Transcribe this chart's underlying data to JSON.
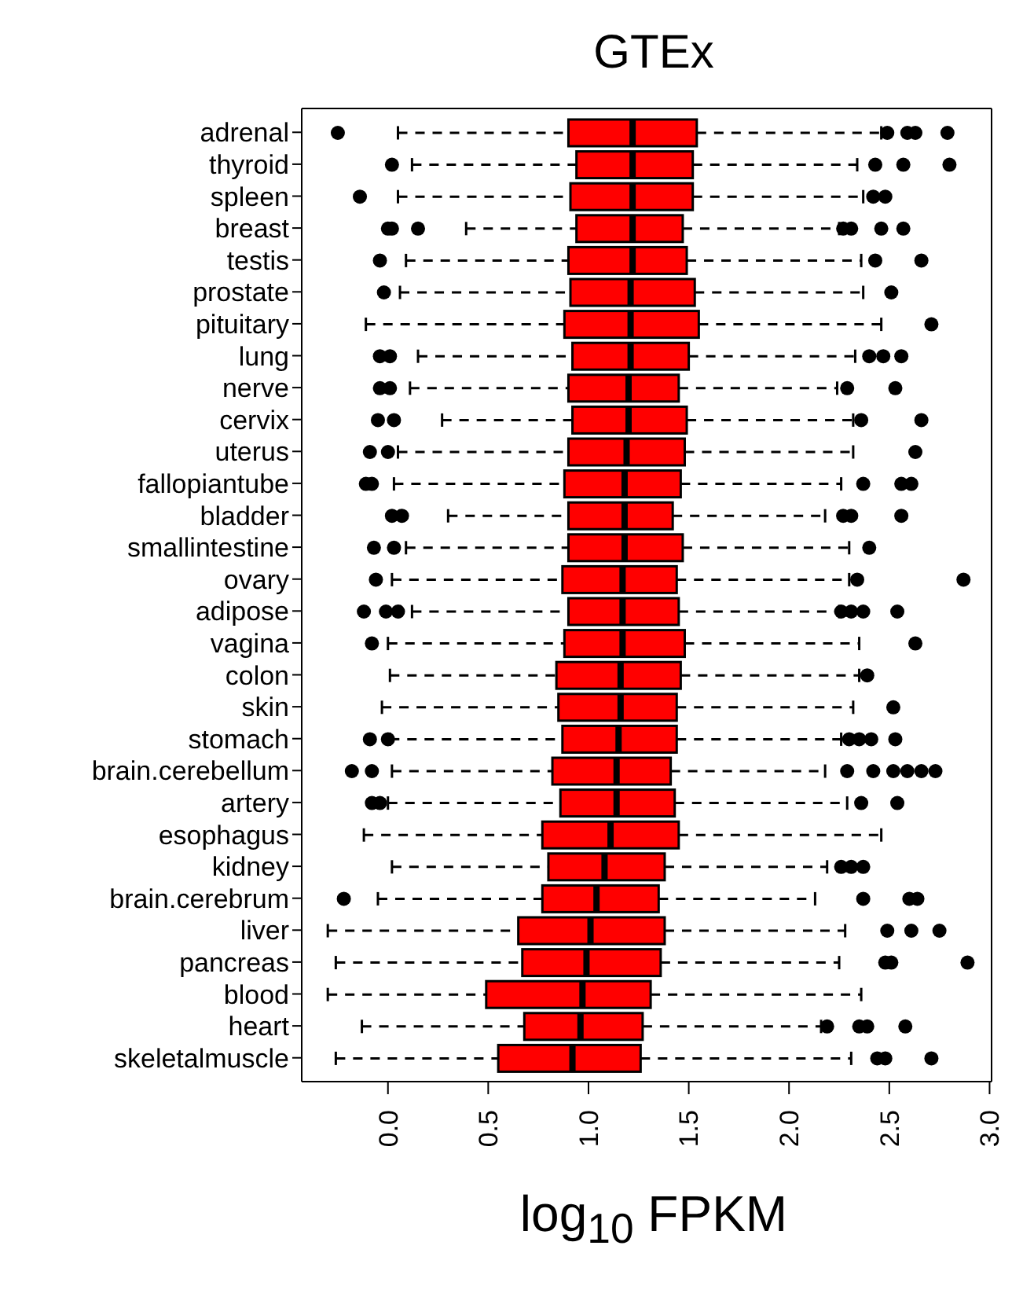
{
  "chart_data": {
    "type": "box",
    "orientation": "horizontal",
    "title": "GTEx",
    "xlabel": "log$_{10}$ FPKM",
    "color": "#ff0000",
    "line_style": "dashed",
    "categories": [
      "adrenal",
      "thyroid",
      "spleen",
      "breast",
      "testis",
      "prostate",
      "pituitary",
      "lung",
      "nerve",
      "cervix",
      "uterus",
      "fallopiantube",
      "bladder",
      "smallintestine",
      "ovary",
      "adipose",
      "vagina",
      "colon",
      "skin",
      "stomach",
      "brain.cerebellum",
      "artery",
      "esophagus",
      "kidney",
      "brain.cerebrum",
      "liver",
      "pancreas",
      "blood",
      "heart",
      "skeletalmuscle"
    ],
    "xlim": [
      -0.43,
      3.01
    ],
    "xticks": [
      {
        "value": 0,
        "label": "0.0"
      },
      {
        "value": 0.5,
        "label": "0.5"
      },
      {
        "value": 1,
        "label": "1.0"
      },
      {
        "value": 1.5,
        "label": "1.5"
      },
      {
        "value": 2,
        "label": "2.0"
      },
      {
        "value": 2.5,
        "label": "2.5"
      },
      {
        "value": 3,
        "label": "3.0"
      }
    ],
    "boxes": [
      {
        "low": 0.05,
        "q1": 0.9,
        "median": 1.22,
        "q3": 1.54,
        "high": 2.46,
        "outliers": [
          -0.25,
          2.49,
          2.59,
          2.63,
          2.79
        ]
      },
      {
        "low": 0.12,
        "q1": 0.94,
        "median": 1.22,
        "q3": 1.52,
        "high": 2.34,
        "outliers": [
          0.02,
          2.43,
          2.57,
          2.8
        ]
      },
      {
        "low": 0.05,
        "q1": 0.91,
        "median": 1.22,
        "q3": 1.52,
        "high": 2.37,
        "outliers": [
          -0.14,
          2.42,
          2.48
        ]
      },
      {
        "low": 0.39,
        "q1": 0.94,
        "median": 1.22,
        "q3": 1.47,
        "high": 2.25,
        "outliers": [
          0,
          0.02,
          0.15,
          2.27,
          2.31,
          2.46,
          2.57
        ]
      },
      {
        "low": 0.09,
        "q1": 0.9,
        "median": 1.22,
        "q3": 1.49,
        "high": 2.36,
        "outliers": [
          -0.04,
          2.43,
          2.66
        ]
      },
      {
        "low": 0.06,
        "q1": 0.91,
        "median": 1.21,
        "q3": 1.53,
        "high": 2.37,
        "outliers": [
          -0.02,
          2.51
        ]
      },
      {
        "low": -0.11,
        "q1": 0.88,
        "median": 1.21,
        "q3": 1.55,
        "high": 2.46,
        "outliers": [
          2.71
        ]
      },
      {
        "low": 0.15,
        "q1": 0.92,
        "median": 1.21,
        "q3": 1.5,
        "high": 2.33,
        "outliers": [
          -0.04,
          0.01,
          2.4,
          2.47,
          2.56
        ]
      },
      {
        "low": 0.11,
        "q1": 0.9,
        "median": 1.2,
        "q3": 1.45,
        "high": 2.24,
        "outliers": [
          -0.04,
          0.01,
          2.29,
          2.53
        ]
      },
      {
        "low": 0.27,
        "q1": 0.92,
        "median": 1.2,
        "q3": 1.49,
        "high": 2.32,
        "outliers": [
          -0.05,
          0.03,
          2.36,
          2.66
        ]
      },
      {
        "low": 0.05,
        "q1": 0.9,
        "median": 1.19,
        "q3": 1.48,
        "high": 2.32,
        "outliers": [
          -0.09,
          0,
          2.63
        ]
      },
      {
        "low": 0.03,
        "q1": 0.88,
        "median": 1.18,
        "q3": 1.46,
        "high": 2.26,
        "outliers": [
          -0.11,
          -0.08,
          2.37,
          2.56,
          2.61
        ]
      },
      {
        "low": 0.3,
        "q1": 0.9,
        "median": 1.18,
        "q3": 1.42,
        "high": 2.18,
        "outliers": [
          0.02,
          0.07,
          2.27,
          2.31,
          2.56
        ]
      },
      {
        "low": 0.09,
        "q1": 0.9,
        "median": 1.18,
        "q3": 1.47,
        "high": 2.3,
        "outliers": [
          -0.07,
          0.03,
          2.4
        ]
      },
      {
        "low": 0.02,
        "q1": 0.87,
        "median": 1.17,
        "q3": 1.44,
        "high": 2.3,
        "outliers": [
          -0.06,
          2.34,
          2.87
        ]
      },
      {
        "low": 0.12,
        "q1": 0.9,
        "median": 1.17,
        "q3": 1.45,
        "high": 2.25,
        "outliers": [
          -0.12,
          -0.01,
          0.05,
          2.26,
          2.31,
          2.37,
          2.54
        ]
      },
      {
        "low": 0,
        "q1": 0.88,
        "median": 1.17,
        "q3": 1.48,
        "high": 2.35,
        "outliers": [
          -0.08,
          2.63
        ]
      },
      {
        "low": 0.01,
        "q1": 0.84,
        "median": 1.16,
        "q3": 1.46,
        "high": 2.35,
        "outliers": [
          2.39
        ]
      },
      {
        "low": -0.03,
        "q1": 0.85,
        "median": 1.16,
        "q3": 1.44,
        "high": 2.32,
        "outliers": [
          2.52
        ]
      },
      {
        "low": 0.01,
        "q1": 0.87,
        "median": 1.15,
        "q3": 1.44,
        "high": 2.26,
        "outliers": [
          -0.09,
          0,
          2.3,
          2.35,
          2.41,
          2.53
        ]
      },
      {
        "low": 0.02,
        "q1": 0.82,
        "median": 1.14,
        "q3": 1.41,
        "high": 2.18,
        "outliers": [
          -0.18,
          -0.08,
          2.29,
          2.42,
          2.52,
          2.59,
          2.66,
          2.73
        ]
      },
      {
        "low": 0,
        "q1": 0.86,
        "median": 1.14,
        "q3": 1.43,
        "high": 2.29,
        "outliers": [
          -0.08,
          -0.04,
          2.36,
          2.54
        ]
      },
      {
        "low": -0.12,
        "q1": 0.77,
        "median": 1.11,
        "q3": 1.45,
        "high": 2.46
      },
      {
        "low": 0.02,
        "q1": 0.8,
        "median": 1.08,
        "q3": 1.38,
        "high": 2.19,
        "outliers": [
          2.26,
          2.31,
          2.37
        ]
      },
      {
        "low": -0.05,
        "q1": 0.77,
        "median": 1.04,
        "q3": 1.35,
        "high": 2.13,
        "outliers": [
          -0.22,
          2.37,
          2.6,
          2.64
        ]
      },
      {
        "low": -0.3,
        "q1": 0.65,
        "median": 1.01,
        "q3": 1.38,
        "high": 2.28,
        "outliers": [
          2.49,
          2.61,
          2.75
        ]
      },
      {
        "low": -0.26,
        "q1": 0.67,
        "median": 0.99,
        "q3": 1.36,
        "high": 2.25,
        "outliers": [
          2.48,
          2.51,
          2.89
        ]
      },
      {
        "low": -0.3,
        "q1": 0.49,
        "median": 0.97,
        "q3": 1.31,
        "high": 2.36
      },
      {
        "low": -0.13,
        "q1": 0.68,
        "median": 0.96,
        "q3": 1.27,
        "high": 2.16,
        "outliers": [
          2.19,
          2.35,
          2.39,
          2.58
        ]
      },
      {
        "low": -0.26,
        "q1": 0.55,
        "median": 0.92,
        "q3": 1.26,
        "high": 2.31,
        "outliers": [
          2.44,
          2.48,
          2.71
        ]
      }
    ]
  }
}
